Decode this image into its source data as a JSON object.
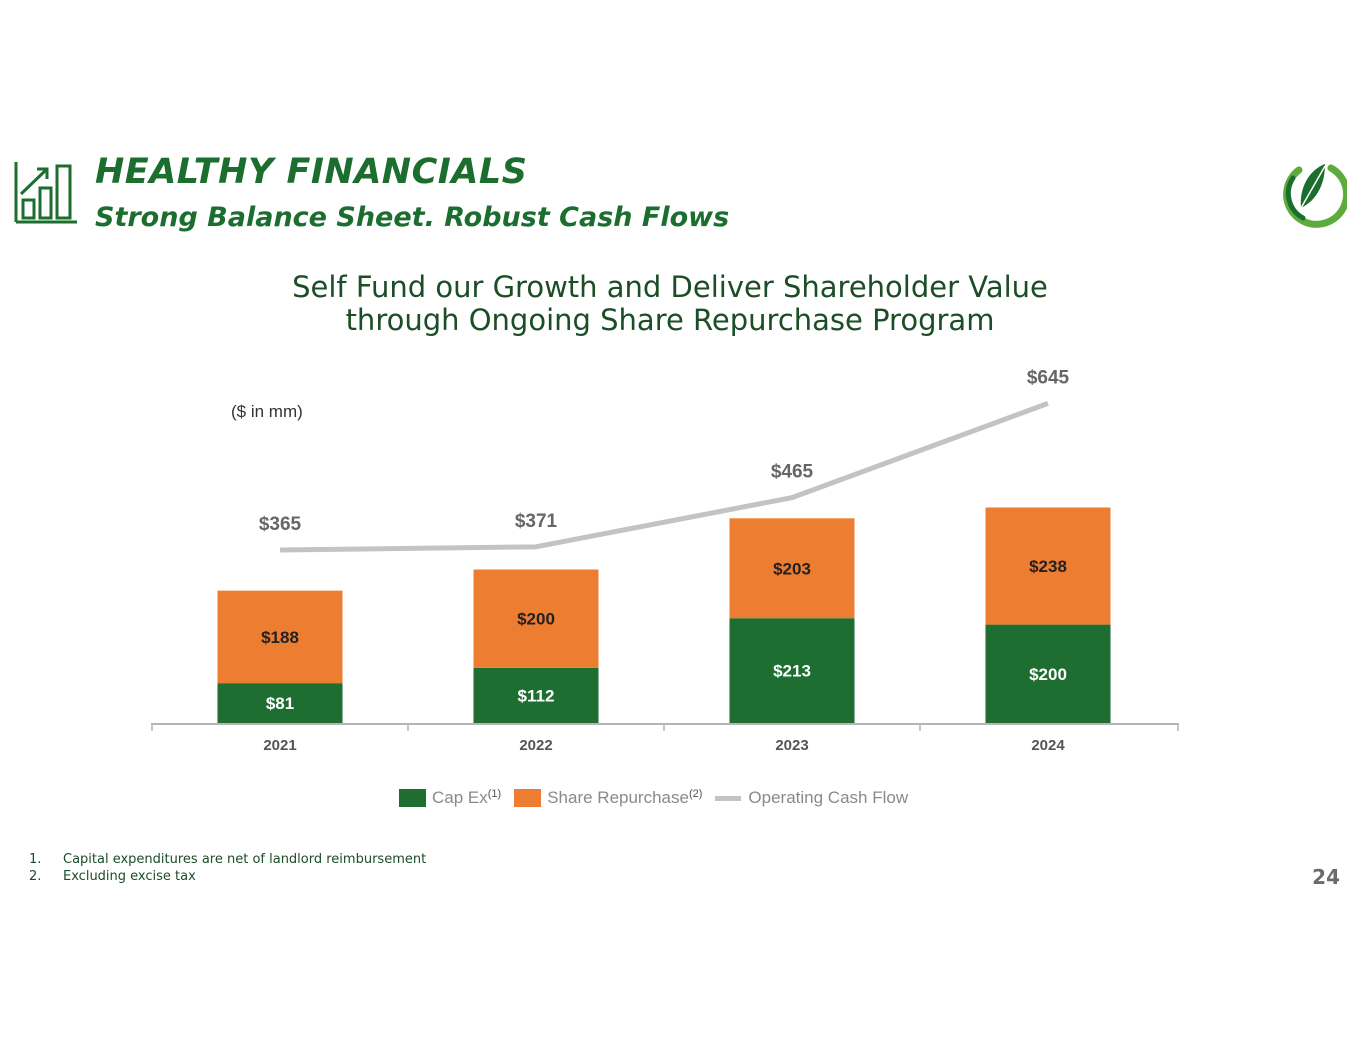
{
  "header": {
    "title": "HEALTHY FINANCIALS",
    "subtitle": "Strong Balance Sheet. Robust Cash Flows"
  },
  "headline": {
    "line1": "Self Fund our Growth and Deliver Shareholder Value",
    "line2": "through Ongoing Share Repurchase Program"
  },
  "colors": {
    "brand_green": "#1b6e2e",
    "cap_ex": "#1e6e32",
    "share_repurchase": "#ed7d31",
    "operating_cash_flow": "#c3c3c3"
  },
  "chart_data": {
    "type": "bar",
    "stacked": true,
    "unit_label": "($ in mm)",
    "categories": [
      "2021",
      "2022",
      "2023",
      "2024"
    ],
    "series": [
      {
        "name": "Cap Ex",
        "superscript": "(1)",
        "kind": "bar",
        "values": [
          81,
          112,
          213,
          200
        ],
        "labels": [
          "$81",
          "$112",
          "$213",
          "$200"
        ]
      },
      {
        "name": "Share Repurchase",
        "superscript": "(2)",
        "kind": "bar",
        "values": [
          188,
          200,
          203,
          238
        ],
        "labels": [
          "$188",
          "$200",
          "$203",
          "$238"
        ]
      },
      {
        "name": "Operating Cash Flow",
        "kind": "line",
        "values": [
          365,
          371,
          465,
          645
        ],
        "labels": [
          "$365",
          "$371",
          "$465",
          "$645"
        ]
      }
    ],
    "legend_position": "bottom"
  },
  "footnotes": [
    {
      "num": "1.",
      "text": "Capital expenditures are net of landlord reimbursement"
    },
    {
      "num": "2.",
      "text": "Excluding excise tax"
    }
  ],
  "page_number": "24"
}
